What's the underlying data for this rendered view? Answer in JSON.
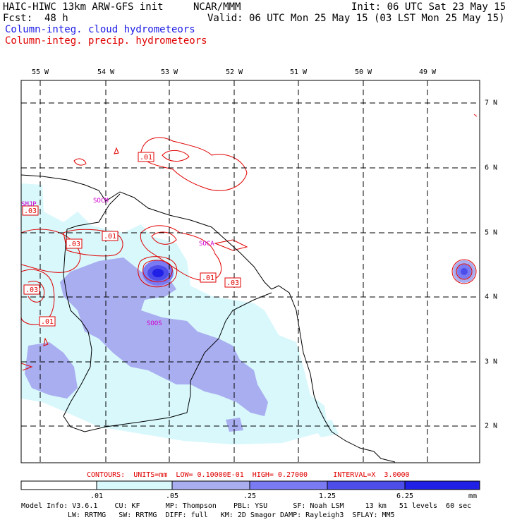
{
  "header": {
    "model": "HAIC-HIWC 13km ARW-GFS init",
    "org": "NCAR/MMM",
    "init": "Init: 06 UTC Sat 23 May 15",
    "fcst_label": "Fcst:",
    "fcst_value": "48 h",
    "valid": "Valid: 06 UTC Mon 25 May 15 (03 LST Mon 25 May 15)",
    "field1": "Column-integ. cloud hydrometeors",
    "field2": "Column-integ. precip. hydrometeors"
  },
  "colors": {
    "cloud_text": "#1a1ae6",
    "precip_text": "#e00000",
    "fill_1": "#d8f8fc",
    "fill_2": "#a9aef0",
    "fill_3": "#7a7bf2",
    "fill_4": "#4d4dea",
    "fill_5": "#2020e6"
  },
  "lon_labels": [
    "55 W",
    "54 W",
    "53 W",
    "52 W",
    "51 W",
    "50 W",
    "49 W"
  ],
  "lat_labels": [
    "7 N",
    "6 N",
    "5 N",
    "4 N",
    "3 N",
    "2 N"
  ],
  "station_labels": [
    "SMJP",
    "SOCM",
    "SOCA",
    "SOOS"
  ],
  "contour_labels": [
    ".01",
    ".03",
    ".01",
    ".03",
    ".03",
    ".01",
    ".03",
    ".01"
  ],
  "contour_info": "CONTOURS:  UNITS=mm  LOW= 0.10000E-01  HIGH= 0.27000      INTERVAL=X  3.0000",
  "colorbar": {
    "ticks": [
      ".01",
      ".05",
      ".25",
      "1.25",
      "6.25"
    ],
    "units": "mm"
  },
  "footer": {
    "line1": "Model Info: V3.6.1    CU: KF      MP: Thompson    PBL: YSU      SF: Noah LSM     13 km   51 levels  60 sec",
    "line2": "LW: RRTMG   SW: RRTMG  DIFF: full   KM: 2D Smagor DAMP: Rayleigh3  SFLAY: MM5"
  }
}
